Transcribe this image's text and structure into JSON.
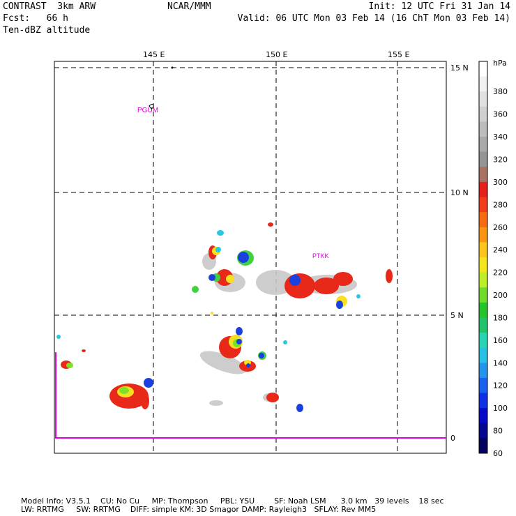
{
  "header": {
    "line1_left": "CONTRAST  3km ARW",
    "line1_center": "NCAR/MMM",
    "line1_right": "Init: 12 UTC Fri 31 Jan 14",
    "line2_left": "Fcst:   66 h",
    "line2_right": "Valid: 06 UTC Mon 03 Feb 14 (16 ChT Mon 03 Feb 14)",
    "line3_left": "Ten-dBZ altitude"
  },
  "map": {
    "lon_labels": [
      "145 E",
      "150 E",
      "155 E"
    ],
    "lat_labels": [
      "15 N",
      "10 N",
      "5 N",
      "0"
    ],
    "stations": [
      "PGUM",
      "PTKK"
    ]
  },
  "colorbar": {
    "unit": "hPa",
    "labels": [
      "380",
      "360",
      "340",
      "320",
      "300",
      "280",
      "260",
      "240",
      "220",
      "200",
      "180",
      "160",
      "140",
      "120",
      "100",
      "80",
      "60"
    ],
    "colors": [
      "#ffffff",
      "#f0f0f0",
      "#e0e0e0",
      "#cfcfcf",
      "#bcbcbc",
      "#a9a9a9",
      "#959595",
      "#a97262",
      "#e6201a",
      "#f23b1a",
      "#f76b12",
      "#fb9410",
      "#fcc51a",
      "#f2e51c",
      "#bcef2a",
      "#6fdc2c",
      "#25c42a",
      "#21c46a",
      "#28d4b4",
      "#27c0e4",
      "#2294ec",
      "#1962f0",
      "#1030e8",
      "#0808c8",
      "#060690",
      "#040460"
    ],
    "colors_note": "ordered top to bottom"
  },
  "footer": {
    "line1": "Model Info: V3.5.1    CU: No Cu     MP: Thompson     PBL: YSU        SF: Noah LSM      3.0 km   39 levels    18 sec",
    "line2": "LW: RRTMG     SW: RRTMG    DIFF: simple KM: 3D Smagor DAMP: Rayleigh3   SFLAY: Rev MM5"
  }
}
